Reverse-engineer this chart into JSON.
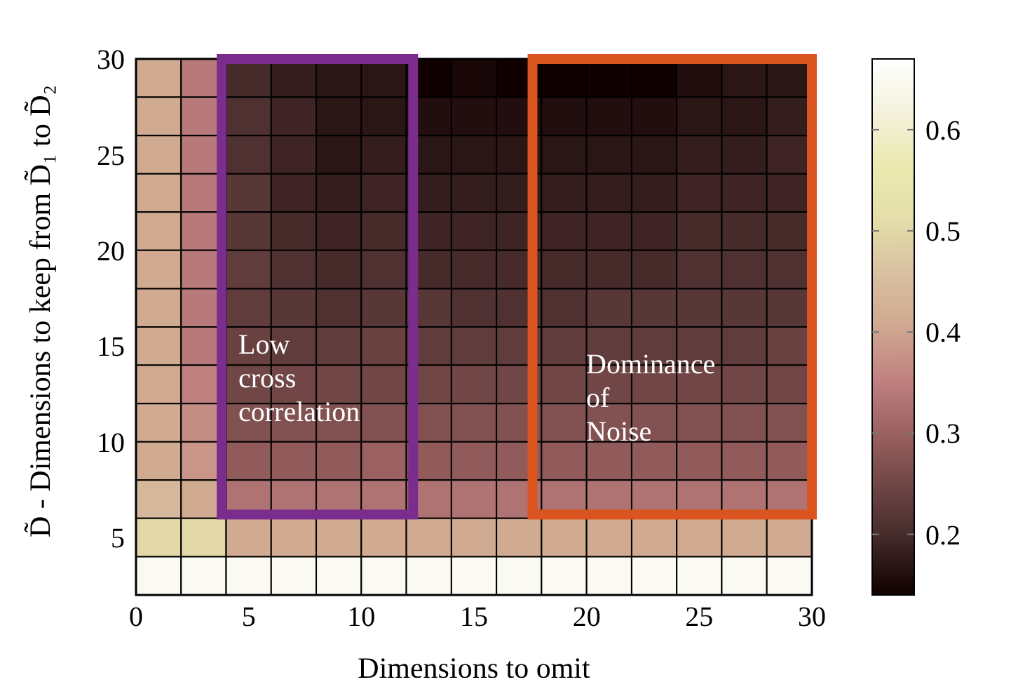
{
  "chart_data": {
    "type": "heatmap",
    "xlabel": "Dimensions to omit",
    "ylabel": "D̃ - Dimensions to keep from D̃₁ to D̃₂",
    "x": [
      1,
      3,
      5,
      7,
      9,
      11,
      13,
      15,
      17,
      19,
      21,
      23,
      25,
      27,
      29
    ],
    "y": [
      29,
      27,
      25,
      23,
      21,
      19,
      17,
      15,
      13,
      11,
      9,
      7,
      5,
      3
    ],
    "xlim": [
      0,
      30
    ],
    "ylim": [
      2,
      30
    ],
    "xticks": [
      0,
      5,
      10,
      15,
      20,
      25,
      30
    ],
    "yticks": [
      5,
      10,
      15,
      20,
      25,
      30
    ],
    "clim": [
      0.14,
      0.67
    ],
    "cticks": [
      0.2,
      0.3,
      0.4,
      0.5,
      0.6
    ],
    "cells": [
      [
        0.41,
        0.34,
        0.2,
        0.18,
        0.17,
        0.17,
        0.14,
        0.15,
        0.14,
        0.14,
        0.14,
        0.14,
        0.16,
        0.17,
        0.17
      ],
      [
        0.41,
        0.34,
        0.21,
        0.19,
        0.17,
        0.17,
        0.16,
        0.16,
        0.16,
        0.16,
        0.16,
        0.16,
        0.17,
        0.17,
        0.18
      ],
      [
        0.41,
        0.34,
        0.21,
        0.19,
        0.17,
        0.18,
        0.17,
        0.17,
        0.17,
        0.17,
        0.17,
        0.17,
        0.18,
        0.18,
        0.19
      ],
      [
        0.41,
        0.34,
        0.22,
        0.19,
        0.18,
        0.19,
        0.18,
        0.18,
        0.18,
        0.18,
        0.18,
        0.18,
        0.19,
        0.19,
        0.19
      ],
      [
        0.41,
        0.34,
        0.22,
        0.2,
        0.19,
        0.2,
        0.19,
        0.19,
        0.19,
        0.19,
        0.19,
        0.19,
        0.2,
        0.2,
        0.2
      ],
      [
        0.41,
        0.34,
        0.23,
        0.21,
        0.2,
        0.21,
        0.2,
        0.2,
        0.2,
        0.2,
        0.2,
        0.2,
        0.21,
        0.21,
        0.21
      ],
      [
        0.41,
        0.34,
        0.23,
        0.22,
        0.21,
        0.22,
        0.22,
        0.21,
        0.21,
        0.21,
        0.22,
        0.22,
        0.22,
        0.22,
        0.22
      ],
      [
        0.41,
        0.34,
        0.24,
        0.23,
        0.23,
        0.24,
        0.23,
        0.23,
        0.23,
        0.23,
        0.23,
        0.23,
        0.23,
        0.23,
        0.24
      ],
      [
        0.41,
        0.35,
        0.25,
        0.25,
        0.25,
        0.25,
        0.25,
        0.25,
        0.25,
        0.25,
        0.25,
        0.25,
        0.25,
        0.25,
        0.25
      ],
      [
        0.41,
        0.37,
        0.27,
        0.27,
        0.27,
        0.27,
        0.27,
        0.27,
        0.27,
        0.27,
        0.27,
        0.27,
        0.27,
        0.27,
        0.27
      ],
      [
        0.41,
        0.38,
        0.29,
        0.29,
        0.29,
        0.3,
        0.29,
        0.29,
        0.29,
        0.29,
        0.29,
        0.29,
        0.29,
        0.29,
        0.29
      ],
      [
        0.44,
        0.41,
        0.33,
        0.33,
        0.33,
        0.33,
        0.33,
        0.33,
        0.33,
        0.33,
        0.33,
        0.33,
        0.33,
        0.33,
        0.33
      ],
      [
        0.5,
        0.5,
        0.41,
        0.41,
        0.41,
        0.41,
        0.41,
        0.41,
        0.41,
        0.41,
        0.41,
        0.41,
        0.41,
        0.41,
        0.41
      ],
      [
        0.65,
        0.65,
        0.65,
        0.65,
        0.65,
        0.65,
        0.65,
        0.65,
        0.65,
        0.65,
        0.65,
        0.65,
        0.65,
        0.65,
        0.65
      ]
    ],
    "annotations": [
      "Low cross correlation",
      "Dominance of Noise"
    ]
  }
}
